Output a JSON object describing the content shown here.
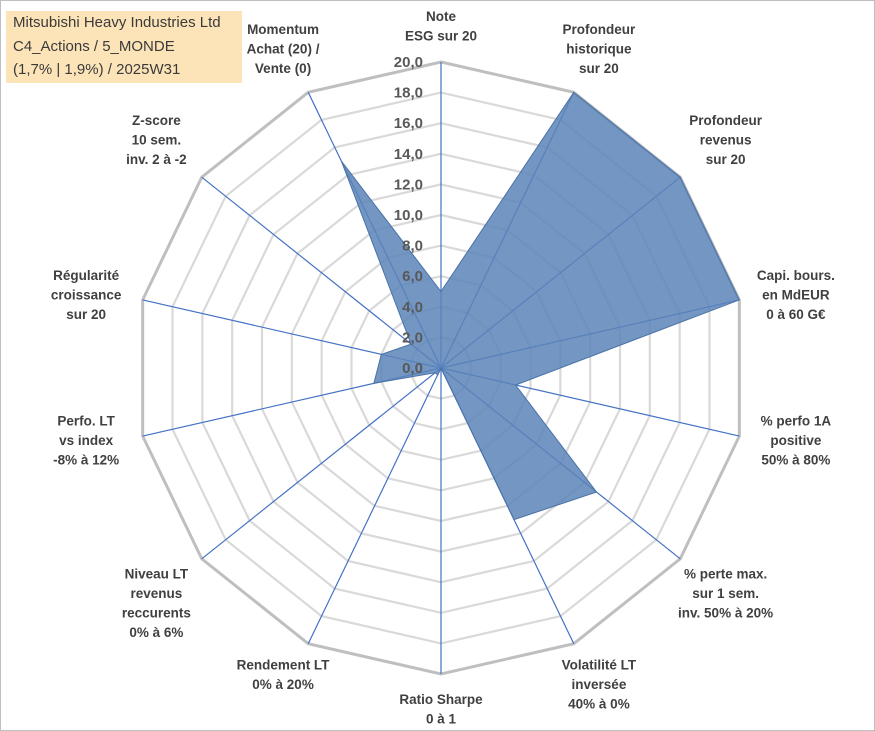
{
  "title": {
    "line1": "Mitsubishi Heavy Industries Ltd",
    "line2": "C4_Actions / 5_MONDE",
    "line3": "(1,7% | 1,9%) / 2025W31"
  },
  "colors": {
    "fill": "#5b84b8",
    "spoke": "#4472c4",
    "grid": "#d9d9d9",
    "title_bg": "#fce4b8"
  },
  "chart_data": {
    "type": "radar",
    "range": [
      0,
      20
    ],
    "tick_step": 2,
    "tick_labels": [
      "0,0",
      "2,0",
      "4,0",
      "6,0",
      "8,0",
      "10,0",
      "12,0",
      "14,0",
      "16,0",
      "18,0",
      "20,0"
    ],
    "grid": true,
    "legend": "none",
    "axes": [
      {
        "label": [
          "Note",
          "ESG sur 20"
        ],
        "value": 5
      },
      {
        "label": [
          "Profondeur",
          "historique",
          "sur 20"
        ],
        "value": 20
      },
      {
        "label": [
          "Profondeur",
          "revenus",
          "sur 20"
        ],
        "value": 20
      },
      {
        "label": [
          "Capi. bours.",
          "en MdEUR",
          "0 à 60 G€"
        ],
        "value": 20
      },
      {
        "label": [
          "% perfo 1A",
          "positive",
          "50% à 80%"
        ],
        "value": 5
      },
      {
        "label": [
          "% perte max.",
          "sur 1 sem.",
          "inv. 50% à 20%"
        ],
        "value": 13
      },
      {
        "label": [
          "Volatilité LT",
          "inversée",
          "40% à 0%"
        ],
        "value": 11
      },
      {
        "label": [
          "Ratio Sharpe",
          "0 à 1"
        ],
        "value": 0
      },
      {
        "label": [
          "Rendement LT",
          "0% à 20%"
        ],
        "value": 0.5
      },
      {
        "label": [
          "Niveau LT",
          "revenus",
          "reccurents",
          "0% à 6%"
        ],
        "value": 0.5
      },
      {
        "label": [
          "Perfo. LT",
          "vs index",
          "-8% à 12%"
        ],
        "value": 4.5
      },
      {
        "label": [
          "Régularité",
          "croissance",
          "sur 20"
        ],
        "value": 4
      },
      {
        "label": [
          "Z-score",
          "10 sem.",
          "inv. 2 à -2"
        ],
        "value": 2.5
      },
      {
        "label": [
          "Momentum",
          "Achat (20) /",
          "Vente (0)"
        ],
        "value": 15
      }
    ]
  }
}
